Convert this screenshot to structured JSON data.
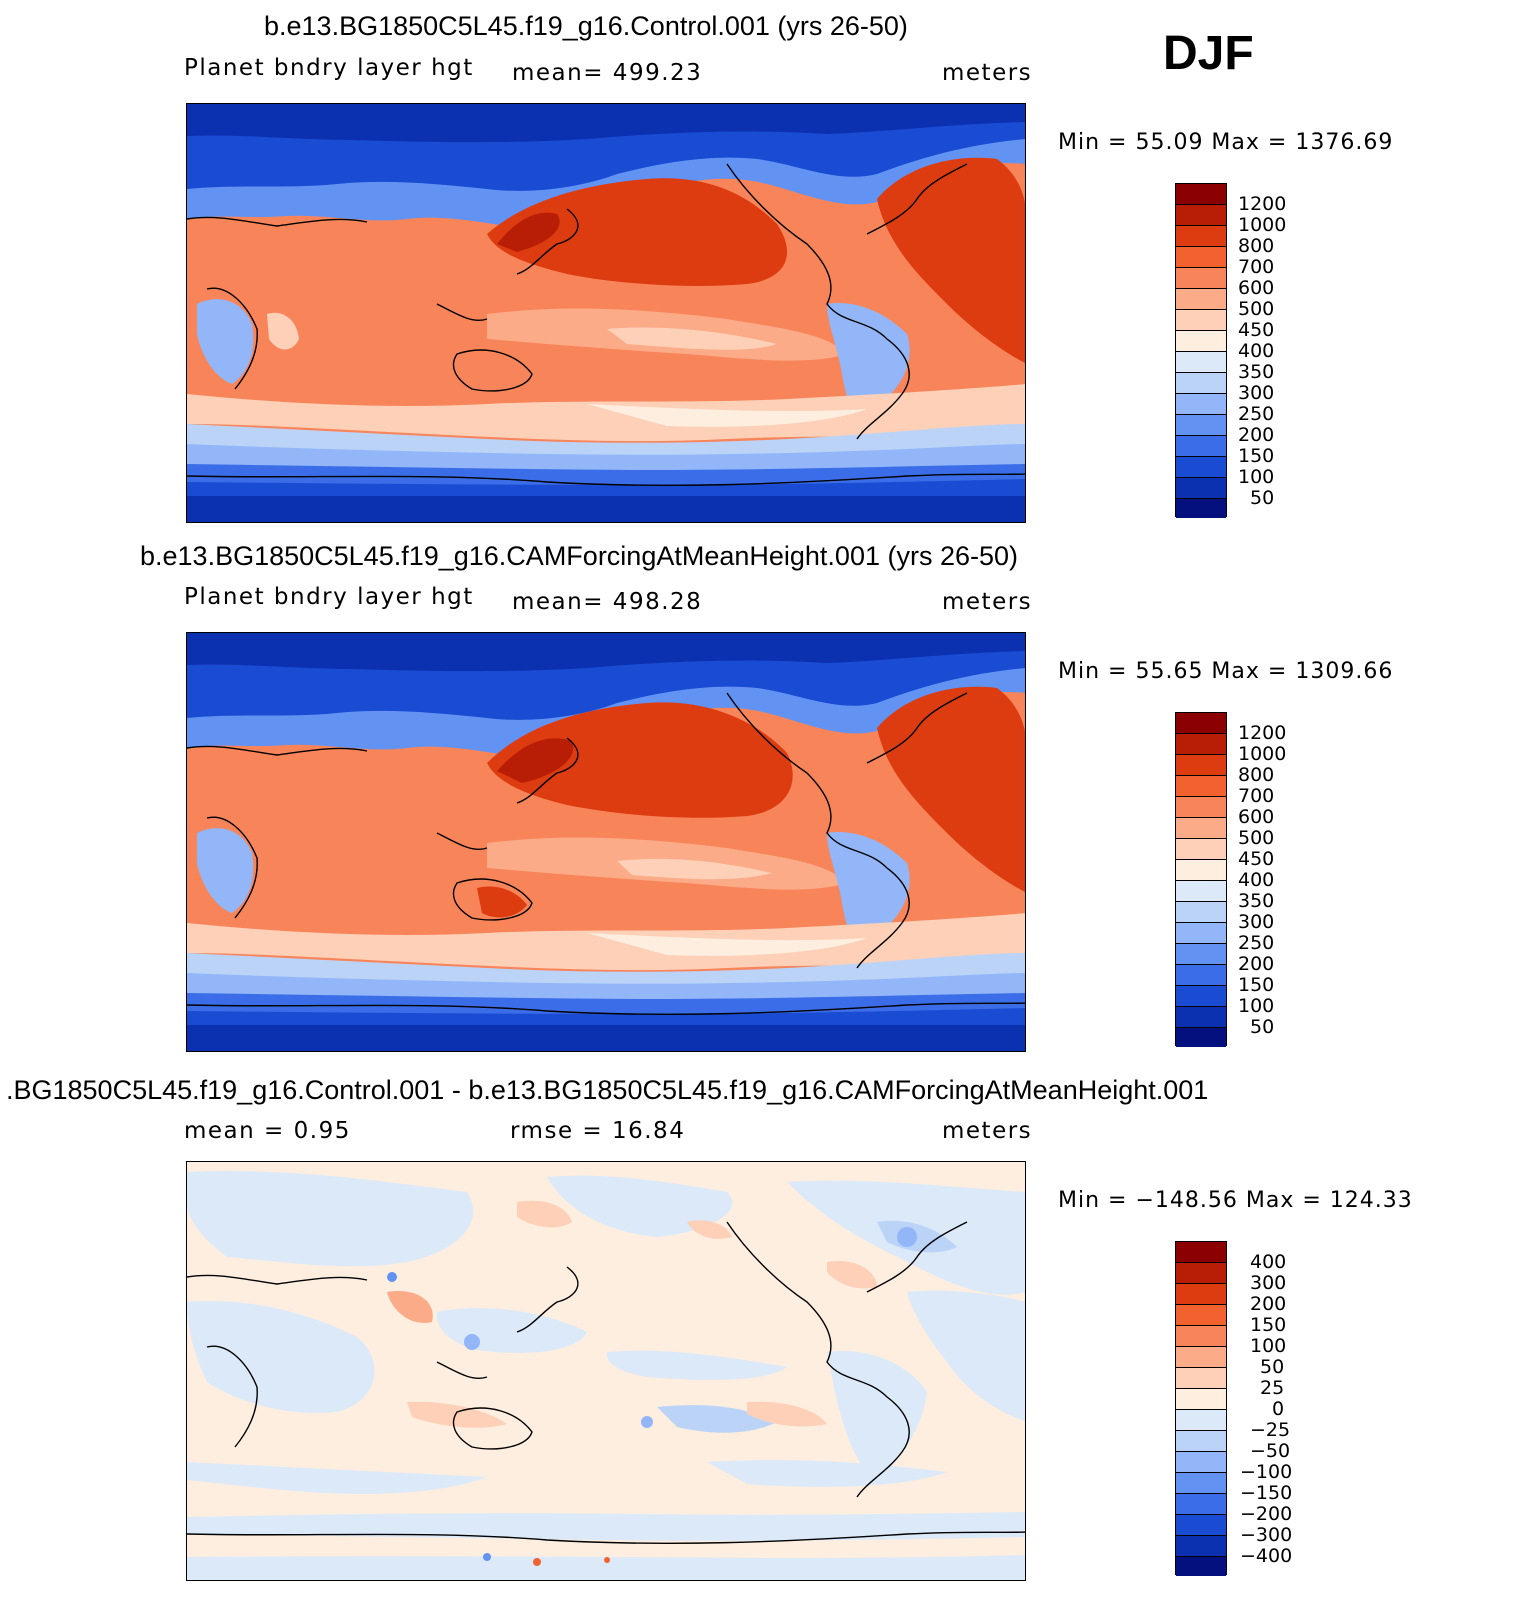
{
  "season": "DJF",
  "panels": [
    {
      "title": "b.e13.BG1850C5L45.f19_g16.Control.001 (yrs 26-50)",
      "variable": "Planet bndry layer hgt",
      "stat": "mean=  499.23",
      "units": "meters",
      "minmax": "Min =   55.09  Max  =  1376.69",
      "labels": [
        "1200",
        "1000",
        "800",
        "700",
        "600",
        "500",
        "450",
        "400",
        "350",
        "300",
        "250",
        "200",
        "150",
        "100",
        "50"
      ]
    },
    {
      "title": "b.e13.BG1850C5L45.f19_g16.CAMForcingAtMeanHeight.001 (yrs 26-50)",
      "variable": "Planet bndry layer hgt",
      "stat": "mean=  498.28",
      "units": "meters",
      "minmax": "Min =   55.65  Max  =  1309.66",
      "labels": [
        "1200",
        "1000",
        "800",
        "700",
        "600",
        "500",
        "450",
        "400",
        "350",
        "300",
        "250",
        "200",
        "150",
        "100",
        "50"
      ]
    },
    {
      "title": ".BG1850C5L45.f19_g16.Control.001 - b.e13.BG1850C5L45.f19_g16.CAMForcingAtMeanHeight.001",
      "stat_mean": "mean  =     0.95",
      "stat_rmse": "rmse  =    16.84",
      "units": "meters",
      "minmax": "Min  =  −148.56  Max  =  124.33",
      "labels": [
        "400",
        "300",
        "200",
        "150",
        "100",
        "50",
        "25",
        "0",
        "−25",
        "−50",
        "−100",
        "−150",
        "−200",
        "−300",
        "−400"
      ]
    }
  ],
  "colors": [
    "#8b0000",
    "#b81e05",
    "#dd3b10",
    "#f2622e",
    "#f88459",
    "#fbab88",
    "#fdd0b7",
    "#fdeee0",
    "#dce9f8",
    "#bcd3f8",
    "#92b6f7",
    "#6293f3",
    "#3b6de8",
    "#1a4bd3",
    "#0b30b0",
    "#03107e"
  ]
}
